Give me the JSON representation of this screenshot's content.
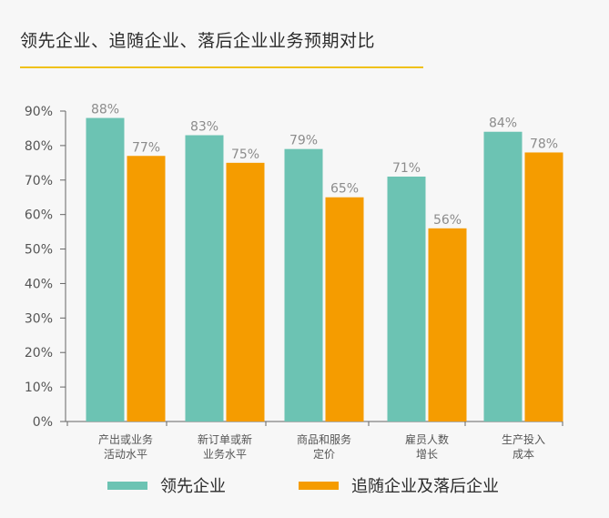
{
  "title": "领先企业、追随企业、落后企业业务预期对比",
  "colors": {
    "series_a": "#6cc3b3",
    "series_b": "#f59c00",
    "title_rule": "#f0c11a",
    "axis_text": "#555555",
    "value_text": "#8c8c8c"
  },
  "chart_data": {
    "type": "bar",
    "categories": [
      [
        "产出或业务",
        "活动水平"
      ],
      [
        "新订单或新",
        "业务水平"
      ],
      [
        "商品和服务",
        "定价"
      ],
      [
        "雇员人数",
        "增长"
      ],
      [
        "生产投入",
        "成本"
      ]
    ],
    "series": [
      {
        "name": "领先企业",
        "values": [
          88,
          83,
          79,
          71,
          84
        ]
      },
      {
        "name": "追随企业及落后企业",
        "values": [
          77,
          75,
          65,
          56,
          78
        ]
      }
    ],
    "ylim": [
      0,
      90
    ],
    "yticks": [
      0,
      10,
      20,
      30,
      40,
      50,
      60,
      70,
      80,
      90
    ],
    "tick_suffix": "%",
    "value_label_suffix": "%",
    "grid": false,
    "legend_position": "bottom"
  }
}
